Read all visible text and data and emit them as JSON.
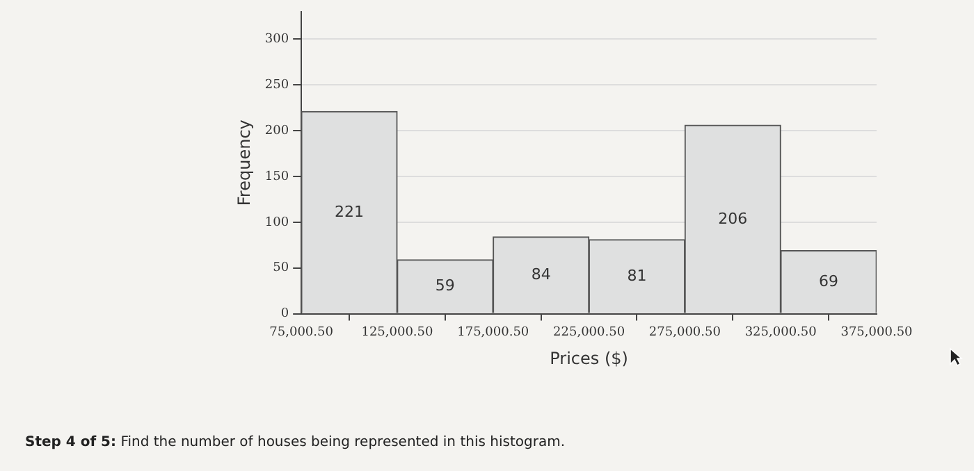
{
  "chart_data": {
    "type": "histogram",
    "xlabel": "Prices ($)",
    "ylabel": "Frequency",
    "bins": [
      75000.5,
      125000.5,
      175000.5,
      225000.5,
      275000.5,
      325000.5,
      375000.5
    ],
    "values": [
      221,
      59,
      84,
      81,
      206,
      69
    ],
    "color": "#dfe0e0",
    "xlim": [
      75000.5,
      375000.5
    ],
    "xticks": [
      {
        "value": 75000.5,
        "label": "75,000.50"
      },
      {
        "value": 125000.5,
        "label": "125,000.50"
      },
      {
        "value": 175000.5,
        "label": "175,000.50"
      },
      {
        "value": 225000.5,
        "label": "225,000.50"
      },
      {
        "value": 275000.5,
        "label": "275,000.50"
      },
      {
        "value": 325000.5,
        "label": "325,000.50"
      },
      {
        "value": 375000.5,
        "label": "375,000.50"
      }
    ],
    "ylim": [
      0,
      330
    ],
    "yticks": [
      0,
      50,
      100,
      150,
      200,
      250,
      300
    ],
    "grid": "y",
    "legend": false,
    "data_labels": true,
    "annotations": [
      "Step 4 of 5: Find the number of houses being represented in this histogram."
    ]
  }
}
